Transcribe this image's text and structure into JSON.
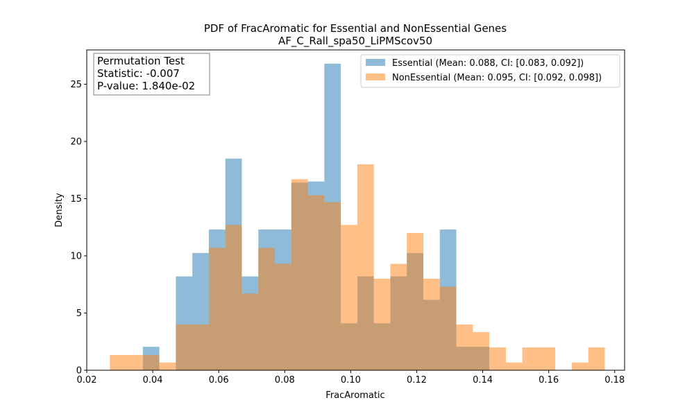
{
  "chart_data": {
    "type": "bar",
    "title": "PDF of FracAromatic for Essential and NonEssential Genes",
    "subtitle": "AF_C_Rall_spa50_LiPMScov50",
    "xlabel": "FracAromatic",
    "ylabel": "Density",
    "xlim": [
      0.02,
      0.183
    ],
    "ylim": [
      0,
      28
    ],
    "x_ticks": [
      "0.02",
      "0.04",
      "0.06",
      "0.08",
      "0.10",
      "0.12",
      "0.14",
      "0.16",
      "0.18"
    ],
    "x_tick_values": [
      0.02,
      0.04,
      0.06,
      0.08,
      0.1,
      0.12,
      0.14,
      0.16,
      0.18
    ],
    "y_ticks": [
      "0",
      "5",
      "10",
      "15",
      "20",
      "25"
    ],
    "y_tick_values": [
      0,
      5,
      10,
      15,
      20,
      25
    ],
    "legend_position": "top-right",
    "grid": false,
    "stats_box": {
      "line1": "Permutation Test",
      "line2": "Statistic: -0.007",
      "line3": "P-value: 1.840e-02"
    },
    "series": [
      {
        "name": "Essential (Mean: 0.088, CI: [0.083, 0.092])",
        "color": "#1f77b4",
        "bin_edges": [
          0.037,
          0.042,
          0.047,
          0.052,
          0.057,
          0.062,
          0.067,
          0.072,
          0.077,
          0.082,
          0.087,
          0.092,
          0.097,
          0.102,
          0.107,
          0.112,
          0.117,
          0.122,
          0.127,
          0.132,
          0.137,
          0.142
        ],
        "values": [
          2.05,
          0,
          8.2,
          10.25,
          12.3,
          18.5,
          8.2,
          12.3,
          12.3,
          16.4,
          16.5,
          26.8,
          4.1,
          8.2,
          4.1,
          8.2,
          10.25,
          6.15,
          12.3,
          2.05,
          2.05
        ]
      },
      {
        "name": "NonEssential (Mean: 0.095, CI: [0.092, 0.098])",
        "color": "#ff7f0e",
        "bin_edges": [
          0.027,
          0.032,
          0.037,
          0.042,
          0.047,
          0.052,
          0.057,
          0.062,
          0.067,
          0.072,
          0.077,
          0.082,
          0.087,
          0.092,
          0.097,
          0.102,
          0.107,
          0.112,
          0.117,
          0.122,
          0.127,
          0.132,
          0.137,
          0.142,
          0.147,
          0.152,
          0.157,
          0.162,
          0.167,
          0.172,
          0.177
        ],
        "values": [
          1.33,
          1.33,
          1.33,
          0.67,
          4.0,
          4.0,
          10.7,
          12.7,
          6.7,
          10.7,
          9.3,
          16.7,
          15.3,
          14.7,
          12.7,
          18.0,
          8.0,
          9.3,
          12.0,
          8.0,
          7.3,
          4.0,
          3.33,
          2.0,
          0.67,
          2.0,
          2.0,
          0,
          0.67,
          2.0
        ]
      }
    ]
  }
}
